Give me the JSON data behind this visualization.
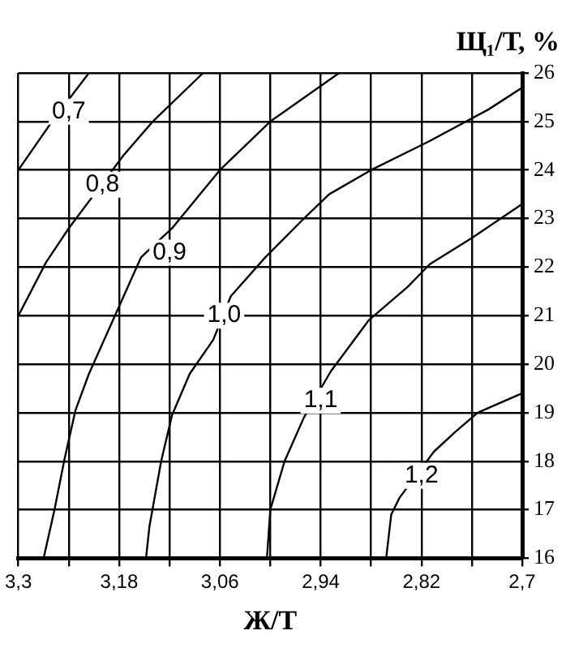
{
  "chart_data": {
    "type": "line",
    "xlabel": "Ж/Т",
    "ylabel": "Щ₁/Т, %",
    "xlim": [
      3.3,
      2.7
    ],
    "ylim": [
      16,
      26
    ],
    "xticks": [
      {
        "value": 3.3,
        "label": "3,3"
      },
      {
        "value": 3.24,
        "label": null
      },
      {
        "value": 3.18,
        "label": "3,18"
      },
      {
        "value": 3.12,
        "label": null
      },
      {
        "value": 3.06,
        "label": "3,06"
      },
      {
        "value": 3.0,
        "label": null
      },
      {
        "value": 2.94,
        "label": "2,94"
      },
      {
        "value": 2.88,
        "label": null
      },
      {
        "value": 2.82,
        "label": "2,82"
      },
      {
        "value": 2.76,
        "label": null
      },
      {
        "value": 2.7,
        "label": "2,7"
      }
    ],
    "yticks": [
      16,
      17,
      18,
      19,
      20,
      21,
      22,
      23,
      24,
      25,
      26
    ],
    "grid": true,
    "legend": false,
    "marker": "none",
    "line_style": "solid",
    "series": [
      {
        "color": "#000000",
        "x": [
          3.3,
          3.26,
          3.216
        ],
        "values": [
          24,
          25,
          26
        ]
      },
      {
        "color": "#000000",
        "x": [
          3.3,
          3.267,
          3.24,
          3.175,
          3.14,
          3.08
        ],
        "values": [
          21,
          22.1,
          22.8,
          24.3,
          25,
          26
        ]
      },
      {
        "color": "#000000",
        "x": [
          3.27,
          3.257,
          3.245,
          3.232,
          3.216,
          3.185,
          3.154,
          3.117,
          3.06,
          3.0,
          2.918
        ],
        "values": [
          16,
          17,
          18.05,
          19.05,
          19.8,
          21,
          22.2,
          22.8,
          24,
          25,
          26
        ]
      },
      {
        "color": "#000000",
        "x": [
          3.148,
          3.144,
          3.13,
          3.117,
          3.096,
          3.068,
          3.047,
          3.006,
          2.96,
          2.93,
          2.88,
          2.81,
          2.74,
          2.7
        ],
        "values": [
          16,
          16.65,
          18,
          18.95,
          19.8,
          20.5,
          21.4,
          22.2,
          23,
          23.5,
          24,
          24.6,
          25.25,
          25.7
        ]
      },
      {
        "color": "#000000",
        "x": [
          3.004,
          3.0,
          2.983,
          2.96,
          2.928,
          2.883,
          2.836,
          2.81,
          2.76,
          2.7
        ],
        "values": [
          16,
          17,
          18,
          18.9,
          19.85,
          20.9,
          21.6,
          22.06,
          22.6,
          23.3
        ]
      },
      {
        "color": "#000000",
        "x": [
          2.862,
          2.856,
          2.846,
          2.805,
          2.78,
          2.753,
          2.7
        ],
        "values": [
          16,
          16.9,
          17.25,
          18.2,
          18.6,
          19,
          19.4
        ]
      }
    ],
    "annotations": [
      {
        "text": "0,7",
        "x": 3.24,
        "y": 25.2
      },
      {
        "text": "0,8",
        "x": 3.2,
        "y": 23.7
      },
      {
        "text": "0,9",
        "x": 3.12,
        "y": 22.3
      },
      {
        "text": "1,0",
        "x": 3.055,
        "y": 21
      },
      {
        "text": "1,1",
        "x": 2.94,
        "y": 19.25
      },
      {
        "text": "1,2",
        "x": 2.82,
        "y": 17.7
      }
    ]
  }
}
